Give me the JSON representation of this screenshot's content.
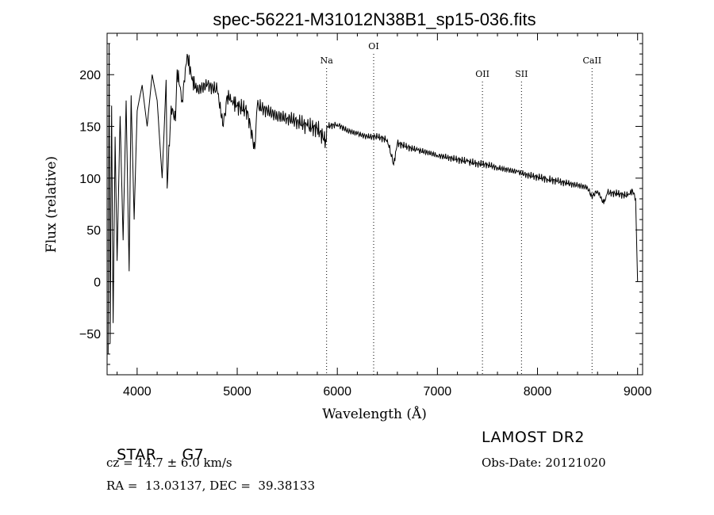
{
  "chart_data": {
    "type": "line",
    "title": "spec-56221-M31012N38B1_sp15-036.fits",
    "xlabel": "Wavelength (Å)",
    "ylabel": "Flux (relative)",
    "xlim": [
      3700,
      9050
    ],
    "ylim": [
      -90,
      240
    ],
    "x_ticks": [
      4000,
      5000,
      6000,
      7000,
      8000,
      9000
    ],
    "y_ticks": [
      -50,
      0,
      50,
      100,
      150,
      200
    ],
    "grid": false,
    "lines": [
      {
        "name": "Na",
        "x": 5893
      },
      {
        "name": "OI",
        "x": 6363
      },
      {
        "name": "OII",
        "x": 7450
      },
      {
        "name": "SII",
        "x": 7840
      },
      {
        "name": "CaII",
        "x": 8545
      }
    ],
    "spectrum": {
      "x": [
        3710,
        3720,
        3730,
        3745,
        3760,
        3780,
        3800,
        3830,
        3860,
        3890,
        3920,
        3940,
        3970,
        4000,
        4050,
        4100,
        4150,
        4200,
        4250,
        4290,
        4300,
        4340,
        4383,
        4400,
        4450,
        4500,
        4550,
        4600,
        4700,
        4800,
        4861,
        4900,
        4950,
        5000,
        5100,
        5175,
        5200,
        5300,
        5400,
        5500,
        5600,
        5700,
        5800,
        5890,
        5900,
        6000,
        6100,
        6200,
        6300,
        6400,
        6500,
        6563,
        6600,
        6700,
        6800,
        6900,
        7000,
        7100,
        7200,
        7300,
        7400,
        7500,
        7600,
        7700,
        7800,
        7900,
        8000,
        8100,
        8200,
        8300,
        8400,
        8500,
        8542,
        8600,
        8662,
        8700,
        8800,
        8900,
        8950,
        8980,
        9000
      ],
      "flux": [
        -70,
        230,
        -60,
        170,
        -40,
        140,
        20,
        160,
        40,
        175,
        10,
        180,
        60,
        165,
        190,
        150,
        200,
        175,
        100,
        195,
        90,
        170,
        155,
        205,
        175,
        220,
        195,
        185,
        190,
        185,
        150,
        180,
        175,
        170,
        165,
        128,
        170,
        165,
        160,
        158,
        155,
        150,
        148,
        135,
        150,
        152,
        146,
        143,
        140,
        140,
        137,
        113,
        134,
        130,
        127,
        125,
        122,
        120,
        118,
        116,
        114,
        113,
        110,
        108,
        106,
        103,
        101,
        99,
        97,
        95,
        93,
        91,
        82,
        88,
        75,
        86,
        85,
        83,
        88,
        80,
        0
      ]
    }
  },
  "footer": {
    "class_label": "STAR",
    "subclass": "G7",
    "cz": "cz = 14.7 ± 6.0 km/s",
    "coords": "RA =  13.03137, DEC =  39.38133",
    "survey": "LAMOST DR2",
    "obs_date": "Obs-Date: 20121020"
  }
}
